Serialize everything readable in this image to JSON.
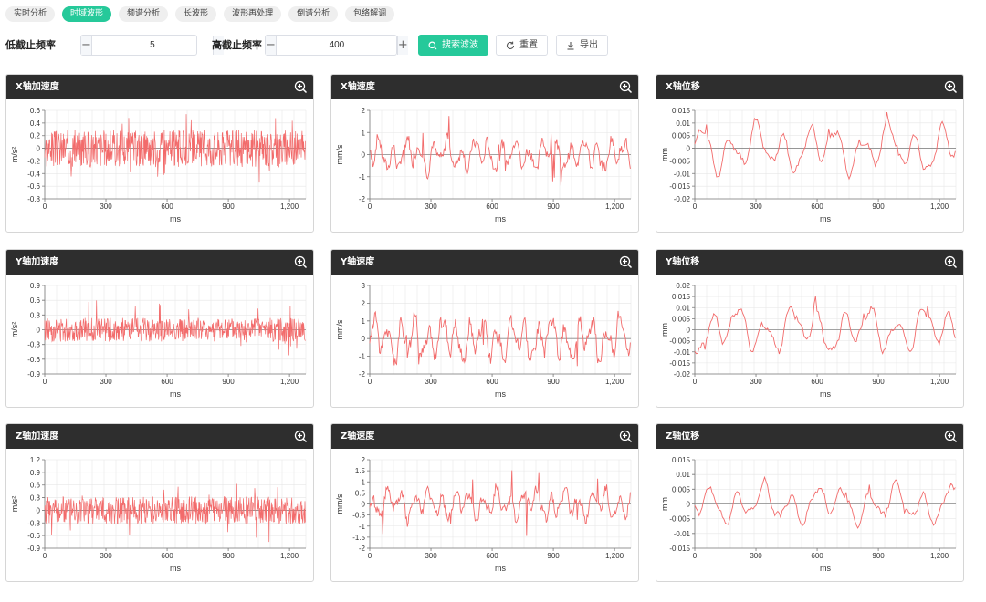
{
  "tabs": [
    {
      "label": "实时分析",
      "active": false
    },
    {
      "label": "时域波形",
      "active": true
    },
    {
      "label": "频谱分析",
      "active": false
    },
    {
      "label": "长波形",
      "active": false
    },
    {
      "label": "波形再处理",
      "active": false
    },
    {
      "label": "倒谱分析",
      "active": false
    },
    {
      "label": "包络解调",
      "active": false
    }
  ],
  "filter": {
    "low_label": "低截止频率",
    "low_value": "5",
    "high_label": "高截止频率",
    "high_value": "400",
    "minus_symbol": "−",
    "plus_symbol": "+",
    "search_label": "搜索滤波",
    "reset_label": "重置",
    "export_label": "导出"
  },
  "colors": {
    "accent": "#26c99a",
    "series": "#f26b6b",
    "header": "#2e2e2e"
  },
  "icons": {
    "zoom": "zoom-in-icon",
    "search": "search-icon",
    "reset": "refresh-icon",
    "export": "download-icon"
  },
  "panels": [
    {
      "title": "X轴加速度",
      "chart_data": {
        "type": "line",
        "ylabel": "m/s²",
        "xlabel": "ms",
        "ylim": [
          -0.8,
          0.6
        ],
        "yticks": [
          "-0.8",
          "-0.6",
          "-0.4",
          "-0.2",
          "0",
          "0.2",
          "0.4",
          "0.6"
        ],
        "xticks": [
          "0",
          "300",
          "600",
          "900",
          "1,200"
        ],
        "xlim": [
          0,
          1280
        ],
        "amplitude": 0.27,
        "spike": 0.55,
        "kind": "noise",
        "seed": 3
      }
    },
    {
      "title": "X轴速度",
      "chart_data": {
        "type": "line",
        "ylabel": "mm/s",
        "xlabel": "ms",
        "ylim": [
          -2,
          2
        ],
        "yticks": [
          "-2",
          "-1",
          "0",
          "1",
          "2"
        ],
        "xticks": [
          "0",
          "300",
          "600",
          "900",
          "1,200"
        ],
        "xlim": [
          0,
          1280
        ],
        "amplitude": 0.55,
        "spike": 1.9,
        "kind": "medium",
        "seed": 7
      }
    },
    {
      "title": "X轴位移",
      "chart_data": {
        "type": "line",
        "ylabel": "mm",
        "xlabel": "ms",
        "ylim": [
          -0.02,
          0.015
        ],
        "yticks": [
          "-0.02",
          "-0.015",
          "-0.01",
          "-0.005",
          "0",
          "0.005",
          "0.01",
          "0.015"
        ],
        "xticks": [
          "0",
          "300",
          "600",
          "900",
          "1,200"
        ],
        "xlim": [
          0,
          1280
        ],
        "amplitude": 0.0065,
        "spike": 0.0175,
        "kind": "smooth",
        "seed": 11
      }
    },
    {
      "title": "Y轴加速度",
      "chart_data": {
        "type": "line",
        "ylabel": "m/s²",
        "xlabel": "ms",
        "ylim": [
          -0.9,
          0.9
        ],
        "yticks": [
          "-0.9",
          "-0.6",
          "-0.3",
          "0",
          "0.3",
          "0.6",
          "0.9"
        ],
        "xticks": [
          "0",
          "300",
          "600",
          "900",
          "1,200"
        ],
        "xlim": [
          0,
          1280
        ],
        "amplitude": 0.22,
        "spike": 0.6,
        "kind": "noise",
        "seed": 13
      }
    },
    {
      "title": "Y轴速度",
      "chart_data": {
        "type": "line",
        "ylabel": "mm/s",
        "xlabel": "ms",
        "ylim": [
          -2,
          3
        ],
        "yticks": [
          "-2",
          "-1",
          "0",
          "1",
          "2",
          "3"
        ],
        "xticks": [
          "0",
          "300",
          "600",
          "900",
          "1,200"
        ],
        "xlim": [
          0,
          1280
        ],
        "amplitude": 0.9,
        "spike": 2.0,
        "kind": "medium",
        "seed": 17
      }
    },
    {
      "title": "Y轴位移",
      "chart_data": {
        "type": "line",
        "ylabel": "mm",
        "xlabel": "ms",
        "ylim": [
          -0.02,
          0.02
        ],
        "yticks": [
          "-0.02",
          "-0.015",
          "-0.01",
          "-0.005",
          "0",
          "0.005",
          "0.01",
          "0.015",
          "0.02"
        ],
        "xticks": [
          "0",
          "300",
          "600",
          "900",
          "1,200"
        ],
        "xlim": [
          0,
          1280
        ],
        "amplitude": 0.007,
        "spike": 0.016,
        "kind": "smooth",
        "seed": 19
      }
    },
    {
      "title": "Z轴加速度",
      "chart_data": {
        "type": "line",
        "ylabel": "m/s²",
        "xlabel": "ms",
        "ylim": [
          -0.9,
          1.2
        ],
        "yticks": [
          "-0.9",
          "-0.6",
          "-0.3",
          "0",
          "0.3",
          "0.6",
          "0.9",
          "1.2"
        ],
        "xticks": [
          "0",
          "300",
          "600",
          "900",
          "1,200"
        ],
        "xlim": [
          0,
          1280
        ],
        "amplitude": 0.3,
        "spike": 0.75,
        "kind": "noise",
        "seed": 23
      }
    },
    {
      "title": "Z轴速度",
      "chart_data": {
        "type": "line",
        "ylabel": "mm/s",
        "xlabel": "ms",
        "ylim": [
          -2,
          2
        ],
        "yticks": [
          "-2",
          "-1.5",
          "-1",
          "-0.5",
          "0",
          "0.5",
          "1",
          "1.5",
          "2"
        ],
        "xticks": [
          "0",
          "300",
          "600",
          "900",
          "1,200"
        ],
        "xlim": [
          0,
          1280
        ],
        "amplitude": 0.5,
        "spike": 1.6,
        "kind": "medium",
        "seed": 29
      }
    },
    {
      "title": "Z轴位移",
      "chart_data": {
        "type": "line",
        "ylabel": "mm",
        "xlabel": "ms",
        "ylim": [
          -0.015,
          0.015
        ],
        "yticks": [
          "-0.015",
          "-0.01",
          "-0.005",
          "0",
          "0.005",
          "0.01",
          "0.015"
        ],
        "xticks": [
          "0",
          "300",
          "600",
          "900",
          "1,200"
        ],
        "xlim": [
          0,
          1280
        ],
        "amplitude": 0.0045,
        "spike": 0.011,
        "kind": "smooth",
        "seed": 31
      }
    }
  ]
}
